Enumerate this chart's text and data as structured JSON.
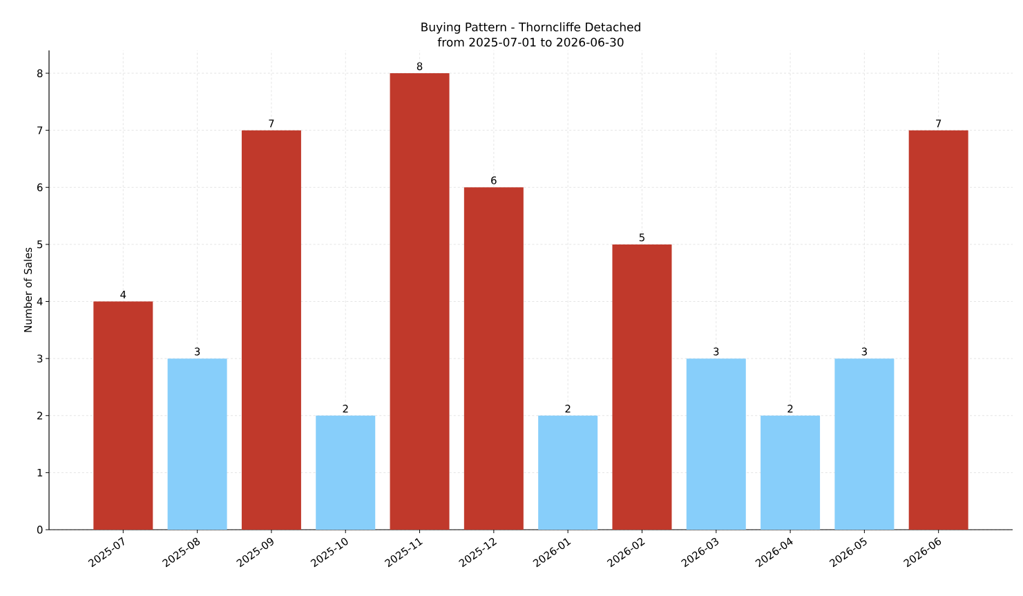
{
  "chart_data": {
    "type": "bar",
    "title": "Buying Pattern - Thorncliffe Detached",
    "subtitle": "from 2025-07-01 to 2026-06-30",
    "ylabel": "Number of Sales",
    "categories": [
      "2025-07",
      "2025-08",
      "2025-09",
      "2025-10",
      "2025-11",
      "2025-12",
      "2026-01",
      "2026-02",
      "2026-03",
      "2026-04",
      "2026-05",
      "2026-06"
    ],
    "values": [
      4,
      3,
      7,
      2,
      8,
      6,
      2,
      5,
      3,
      2,
      3,
      7
    ],
    "colors": [
      "#c0392b",
      "#87cefa",
      "#c0392b",
      "#87cefa",
      "#c0392b",
      "#c0392b",
      "#87cefa",
      "#c0392b",
      "#87cefa",
      "#87cefa",
      "#87cefa",
      "#c0392b"
    ],
    "ylim": [
      0,
      8.4
    ],
    "yticks": [
      0,
      1,
      2,
      3,
      4,
      5,
      6,
      7,
      8
    ],
    "grid": true,
    "data_labels": true
  }
}
